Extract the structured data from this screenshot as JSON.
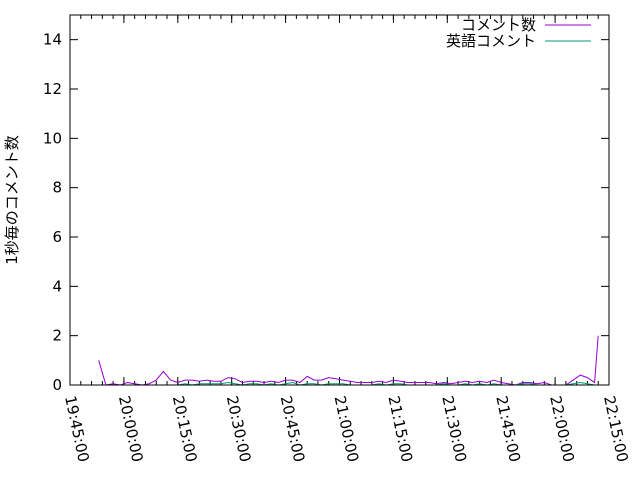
{
  "chart_data": {
    "type": "line",
    "title": "",
    "xlabel": "",
    "ylabel": "1秒毎のコメント数",
    "xlim": [
      "19:45:00",
      "22:15:00"
    ],
    "ylim": [
      0,
      15
    ],
    "xticks": [
      "19:45:00",
      "20:00:00",
      "20:15:00",
      "20:30:00",
      "20:45:00",
      "21:00:00",
      "21:15:00",
      "21:30:00",
      "21:45:00",
      "22:00:00",
      "22:15:00"
    ],
    "yticks": [
      "0",
      "2",
      "4",
      "6",
      "8",
      "10",
      "12",
      "14"
    ],
    "grid": false,
    "legend_position": "top-right",
    "x": [
      "19:53",
      "19:55",
      "19:57",
      "19:59",
      "20:01",
      "20:03",
      "20:05",
      "20:07",
      "20:09",
      "20:11",
      "20:13",
      "20:15",
      "20:17",
      "20:19",
      "20:21",
      "20:23",
      "20:25",
      "20:27",
      "20:29",
      "20:31",
      "20:33",
      "20:35",
      "20:37",
      "20:39",
      "20:41",
      "20:43",
      "20:45",
      "20:47",
      "20:49",
      "20:51",
      "20:53",
      "20:55",
      "20:57",
      "20:59",
      "21:01",
      "21:03",
      "21:05",
      "21:07",
      "21:09",
      "21:11",
      "21:13",
      "21:15",
      "21:17",
      "21:19",
      "21:21",
      "21:23",
      "21:25",
      "21:27",
      "21:29",
      "21:31",
      "21:33",
      "21:35",
      "21:37",
      "21:39",
      "21:41",
      "21:43",
      "21:45",
      "21:47",
      "21:49",
      "21:51",
      "21:53",
      "21:55",
      "21:57",
      "21:59",
      "22:01",
      "22:03",
      "22:05",
      "22:07",
      "22:09",
      "22:11",
      "22:12"
    ],
    "series": [
      {
        "name": "コメント数",
        "color": "#9400d3",
        "values": [
          1.0,
          0,
          0.05,
          0,
          0.1,
          0.05,
          0,
          0.05,
          0.2,
          0.55,
          0.2,
          0.1,
          0.2,
          0.2,
          0.15,
          0.2,
          0.15,
          0.15,
          0.3,
          0.25,
          0.1,
          0.15,
          0.15,
          0.1,
          0.15,
          0.1,
          0.2,
          0.2,
          0.1,
          0.35,
          0.2,
          0.2,
          0.3,
          0.25,
          0.2,
          0.15,
          0.1,
          0.1,
          0.1,
          0.15,
          0.1,
          0.2,
          0.15,
          0.1,
          0.1,
          0.1,
          0.1,
          0.05,
          0.1,
          0.05,
          0.1,
          0.15,
          0.1,
          0.15,
          0.1,
          0.2,
          0.1,
          0.05,
          0,
          0.1,
          0.1,
          0.05,
          0.1,
          0,
          0,
          0,
          0.2,
          0.4,
          0.3,
          0.1,
          2.0
        ]
      },
      {
        "name": "英語コメント",
        "color": "#009e73",
        "values": [
          0,
          0,
          0,
          0,
          0,
          0,
          0,
          0,
          0,
          0,
          0,
          0,
          0.05,
          0,
          0.05,
          0.05,
          0.05,
          0.05,
          0.1,
          0.05,
          0,
          0.05,
          0.05,
          0,
          0.05,
          0,
          0.05,
          0.1,
          0,
          0.05,
          0.05,
          0,
          0.05,
          0.05,
          0.05,
          0,
          0,
          0,
          0,
          0.05,
          0,
          0.05,
          0.05,
          0,
          0,
          0,
          0,
          0,
          0.05,
          0,
          0,
          0.05,
          0,
          0.05,
          0,
          0.05,
          0,
          0,
          0,
          0.05,
          0.05,
          0,
          0,
          0,
          0,
          0,
          0.05,
          0.1,
          0.05,
          0,
          0
        ]
      }
    ]
  }
}
